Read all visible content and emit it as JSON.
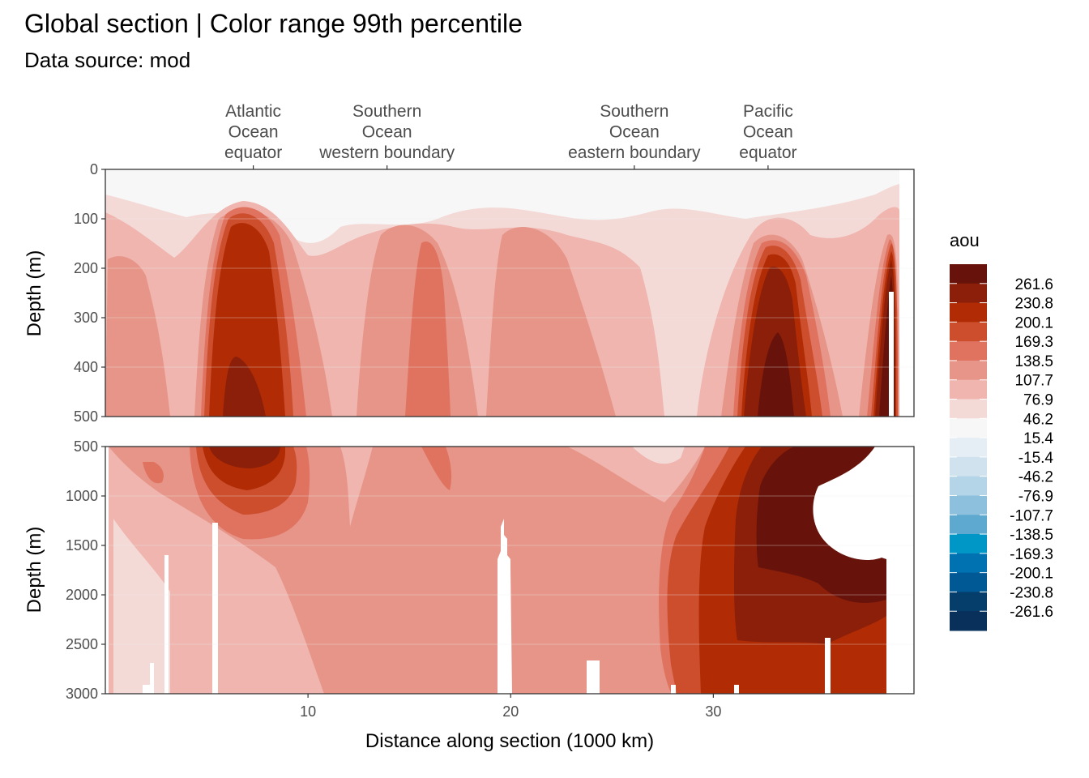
{
  "chart_data": {
    "type": "heatmap",
    "title": "Global section | Color range 99th percentile",
    "subtitle": "Data source:  mod",
    "xlabel": "Distance along section (1000 km)",
    "ylabel": "Depth (m)",
    "xlim": [
      0,
      39.9
    ],
    "x_ticks": [
      10,
      20,
      30
    ],
    "top_axis_labels": [
      {
        "x": 7.3,
        "lines": [
          "Atlantic",
          "Ocean",
          "equator"
        ]
      },
      {
        "x": 13.9,
        "lines": [
          "Southern",
          "Ocean",
          "western boundary"
        ]
      },
      {
        "x": 26.1,
        "lines": [
          "Southern",
          "Ocean",
          "eastern boundary"
        ]
      },
      {
        "x": 32.7,
        "lines": [
          "Pacific",
          "Ocean",
          "equator"
        ]
      }
    ],
    "panels": [
      {
        "name": "upper",
        "ylim": [
          500,
          0
        ],
        "y_ticks": [
          0,
          100,
          200,
          300,
          400,
          500
        ]
      },
      {
        "name": "lower",
        "ylim": [
          3000,
          500
        ],
        "y_ticks": [
          500,
          1000,
          1500,
          2000,
          2500,
          3000
        ]
      }
    ],
    "legend": {
      "title": "aou",
      "breaks": [
        "261.6",
        "230.8",
        "200.1",
        "169.3",
        "138.5",
        "107.7",
        "76.9",
        "46.2",
        "15.4",
        "-15.4",
        "-46.2",
        "-76.9",
        "-107.7",
        "-138.5",
        "-169.3",
        "-200.1",
        "-230.8",
        "-261.6"
      ],
      "colors": [
        "#67130b",
        "#8c1f09",
        "#b12c05",
        "#cc4e2d",
        "#df7360",
        "#e69588",
        "#efb5ae",
        "#f4dad7",
        "#f7f7f7",
        "#e5eef4",
        "#d0e2ee",
        "#b4d5e8",
        "#8dc0dc",
        "#5ea9d0",
        "#0096c6",
        "#0072b2",
        "#005894",
        "#053d6b",
        "#08305a"
      ]
    },
    "zones": [
      {
        "level": "15.4 to 46.2",
        "desc": "near surface band"
      },
      {
        "level": "above 261.6",
        "desc": "deep Pacific core"
      }
    ]
  }
}
